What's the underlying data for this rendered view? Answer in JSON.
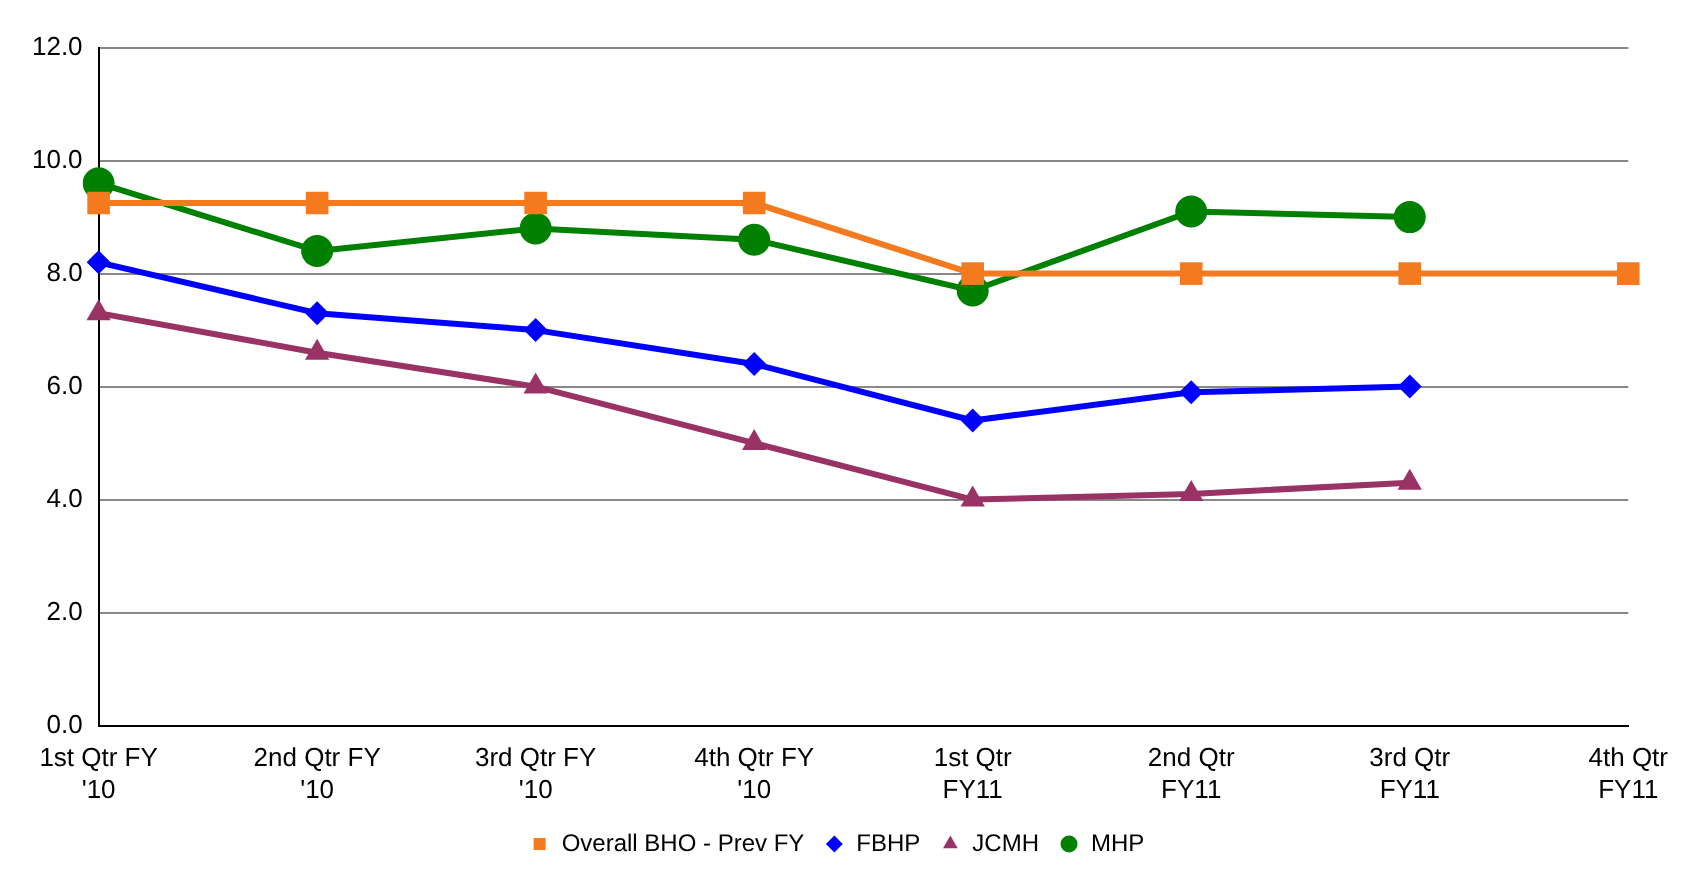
{
  "chart_data": {
    "type": "line",
    "categories": [
      "1st Qtr FY\n'10",
      "2nd Qtr FY\n'10",
      "3rd Qtr FY\n'10",
      "4th Qtr FY\n'10",
      "1st Qtr\nFY11",
      "2nd Qtr\nFY11",
      "3rd Qtr\nFY11",
      "4th Qtr\nFY11"
    ],
    "series": [
      {
        "name": "Overall BHO - Prev FY",
        "color": "#f47a20",
        "marker": "square",
        "values": [
          9.25,
          9.25,
          9.25,
          9.25,
          8.0,
          8.0,
          8.0,
          8.0
        ]
      },
      {
        "name": "FBHP",
        "color": "#0000ff",
        "marker": "diamond",
        "values": [
          8.2,
          7.3,
          7.0,
          6.4,
          5.4,
          5.9,
          6.0,
          null
        ]
      },
      {
        "name": "JCMH",
        "color": "#993366",
        "marker": "triangle",
        "values": [
          7.3,
          6.6,
          6.0,
          5.0,
          4.0,
          4.1,
          4.3,
          null
        ]
      },
      {
        "name": "MHP",
        "color": "#008000",
        "marker": "circle",
        "values": [
          9.6,
          8.4,
          8.8,
          8.6,
          7.7,
          9.1,
          9.0,
          null
        ]
      }
    ],
    "ylim": [
      0,
      12
    ],
    "yticks": [
      {
        "value": 0,
        "label": "0.0"
      },
      {
        "value": 2,
        "label": "2.0"
      },
      {
        "value": 4,
        "label": "4.0"
      },
      {
        "value": 6,
        "label": "6.0"
      },
      {
        "value": 8,
        "label": "8.0"
      },
      {
        "value": 10,
        "label": "10.0"
      },
      {
        "value": 12,
        "label": "12.0"
      }
    ],
    "grid": "y",
    "legend": "bottom"
  }
}
